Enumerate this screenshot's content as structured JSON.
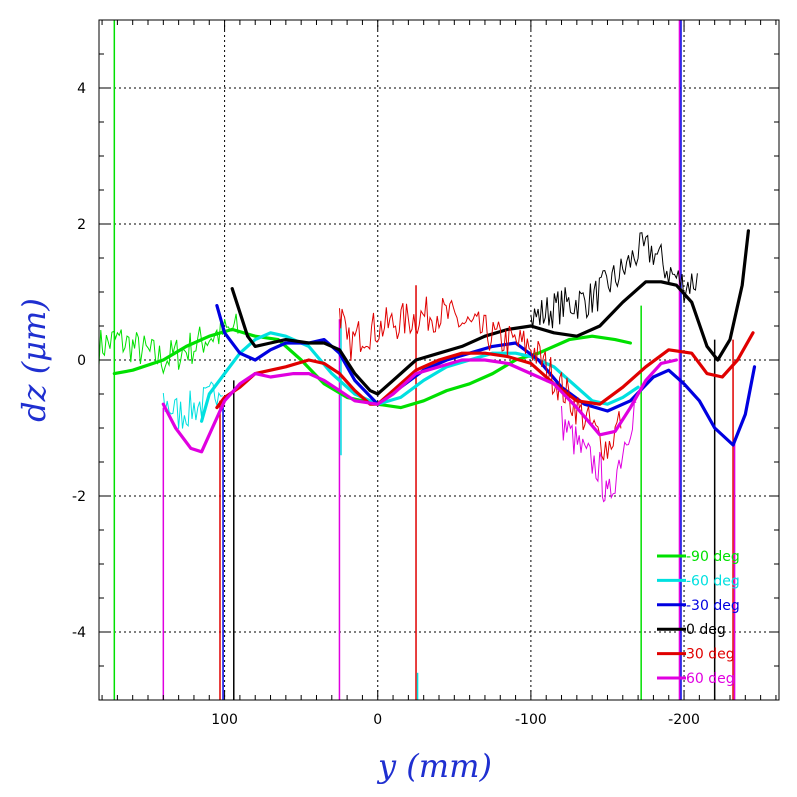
{
  "chart_data": {
    "type": "line",
    "xlabel": "y (mm)",
    "ylabel": "dz (μm)",
    "xlim": [
      182,
      -262
    ],
    "ylim": [
      -5,
      5
    ],
    "x_ticks": [
      100,
      0,
      -100,
      -200
    ],
    "y_ticks": [
      4,
      2,
      0,
      -2,
      -4
    ],
    "grid": true,
    "legend_position": "bottom-right",
    "series": [
      {
        "name": "-90 deg",
        "color": "#00e000",
        "smooth": [
          [
            172,
            -0.2
          ],
          [
            160,
            -0.15
          ],
          [
            140,
            0.0
          ],
          [
            125,
            0.2
          ],
          [
            110,
            0.35
          ],
          [
            95,
            0.45
          ],
          [
            80,
            0.35
          ],
          [
            65,
            0.3
          ],
          [
            50,
            0.0
          ],
          [
            35,
            -0.35
          ],
          [
            20,
            -0.55
          ],
          [
            10,
            -0.6
          ],
          [
            0,
            -0.65
          ],
          [
            -15,
            -0.7
          ],
          [
            -30,
            -0.6
          ],
          [
            -45,
            -0.45
          ],
          [
            -60,
            -0.35
          ],
          [
            -75,
            -0.2
          ],
          [
            -90,
            0.0
          ],
          [
            -105,
            0.1
          ],
          [
            -125,
            0.3
          ],
          [
            -140,
            0.35
          ],
          [
            -155,
            0.3
          ],
          [
            -165,
            0.25
          ]
        ],
        "noisy": [
          [
            182,
            0.2
          ],
          [
            170,
            0.3
          ],
          [
            160,
            0.2
          ],
          [
            150,
            0.1
          ],
          [
            140,
            0.0
          ],
          [
            130,
            0.1
          ],
          [
            120,
            0.2
          ],
          [
            110,
            0.35
          ],
          [
            100,
            0.4
          ],
          [
            90,
            0.45
          ]
        ]
      },
      {
        "name": "-60 deg",
        "color": "#00e0e0",
        "smooth": [
          [
            115,
            -0.9
          ],
          [
            110,
            -0.5
          ],
          [
            100,
            -0.2
          ],
          [
            90,
            0.1
          ],
          [
            80,
            0.3
          ],
          [
            70,
            0.4
          ],
          [
            60,
            0.35
          ],
          [
            45,
            0.2
          ],
          [
            30,
            -0.2
          ],
          [
            15,
            -0.5
          ],
          [
            0,
            -0.65
          ],
          [
            -15,
            -0.55
          ],
          [
            -30,
            -0.3
          ],
          [
            -45,
            -0.1
          ],
          [
            -60,
            0.0
          ],
          [
            -75,
            0.1
          ],
          [
            -90,
            0.1
          ],
          [
            -100,
            0.05
          ],
          [
            -115,
            -0.1
          ],
          [
            -125,
            -0.3
          ],
          [
            -140,
            -0.6
          ],
          [
            -150,
            -0.65
          ],
          [
            -160,
            -0.55
          ],
          [
            -170,
            -0.4
          ]
        ],
        "noisy": [
          [
            140,
            -0.6
          ],
          [
            130,
            -0.8
          ],
          [
            120,
            -0.7
          ],
          [
            110,
            -0.6
          ],
          [
            100,
            -0.2
          ]
        ]
      },
      {
        "name": "-30 deg",
        "color": "#0000e0",
        "smooth": [
          [
            105,
            0.8
          ],
          [
            100,
            0.4
          ],
          [
            90,
            0.1
          ],
          [
            80,
            0.0
          ],
          [
            70,
            0.15
          ],
          [
            60,
            0.25
          ],
          [
            45,
            0.25
          ],
          [
            35,
            0.3
          ],
          [
            25,
            0.1
          ],
          [
            15,
            -0.3
          ],
          [
            0,
            -0.65
          ],
          [
            -15,
            -0.4
          ],
          [
            -30,
            -0.15
          ],
          [
            -45,
            0.0
          ],
          [
            -60,
            0.1
          ],
          [
            -75,
            0.2
          ],
          [
            -90,
            0.25
          ],
          [
            -105,
            0.0
          ],
          [
            -120,
            -0.4
          ],
          [
            -135,
            -0.65
          ],
          [
            -150,
            -0.75
          ],
          [
            -165,
            -0.6
          ],
          [
            -180,
            -0.25
          ],
          [
            -190,
            -0.15
          ],
          [
            -200,
            -0.35
          ],
          [
            -210,
            -0.6
          ],
          [
            -220,
            -1.0
          ],
          [
            -232,
            -1.25
          ],
          [
            -240,
            -0.8
          ],
          [
            -246,
            -0.1
          ]
        ],
        "noisy": []
      },
      {
        "name": "0 deg",
        "color": "#000000",
        "smooth": [
          [
            95,
            1.05
          ],
          [
            90,
            0.7
          ],
          [
            85,
            0.35
          ],
          [
            80,
            0.2
          ],
          [
            70,
            0.25
          ],
          [
            60,
            0.3
          ],
          [
            45,
            0.25
          ],
          [
            35,
            0.25
          ],
          [
            25,
            0.15
          ],
          [
            15,
            -0.2
          ],
          [
            5,
            -0.45
          ],
          [
            0,
            -0.5
          ],
          [
            -10,
            -0.3
          ],
          [
            -25,
            0.0
          ],
          [
            -40,
            0.1
          ],
          [
            -55,
            0.2
          ],
          [
            -70,
            0.35
          ],
          [
            -85,
            0.45
          ],
          [
            -100,
            0.5
          ],
          [
            -115,
            0.4
          ],
          [
            -130,
            0.35
          ],
          [
            -145,
            0.5
          ],
          [
            -160,
            0.85
          ],
          [
            -175,
            1.15
          ],
          [
            -185,
            1.15
          ],
          [
            -195,
            1.1
          ],
          [
            -205,
            0.85
          ],
          [
            -215,
            0.2
          ],
          [
            -222,
            0.0
          ],
          [
            -230,
            0.3
          ],
          [
            -238,
            1.1
          ],
          [
            -242,
            1.9
          ]
        ],
        "noisy": [
          [
            -100,
            0.6
          ],
          [
            -120,
            0.8
          ],
          [
            -140,
            0.9
          ],
          [
            -160,
            1.3
          ],
          [
            -170,
            1.6
          ],
          [
            -180,
            1.6
          ],
          [
            -190,
            1.3
          ],
          [
            -200,
            1.1
          ],
          [
            -210,
            1.2
          ]
        ]
      },
      {
        "name": "30 deg",
        "color": "#e00000",
        "smooth": [
          [
            105,
            -0.7
          ],
          [
            100,
            -0.55
          ],
          [
            90,
            -0.4
          ],
          [
            80,
            -0.2
          ],
          [
            70,
            -0.15
          ],
          [
            60,
            -0.1
          ],
          [
            45,
            0.0
          ],
          [
            35,
            -0.05
          ],
          [
            25,
            -0.2
          ],
          [
            15,
            -0.45
          ],
          [
            5,
            -0.65
          ],
          [
            0,
            -0.65
          ],
          [
            -10,
            -0.45
          ],
          [
            -25,
            -0.15
          ],
          [
            -40,
            0.0
          ],
          [
            -55,
            0.1
          ],
          [
            -70,
            0.1
          ],
          [
            -85,
            0.05
          ],
          [
            -100,
            -0.05
          ],
          [
            -115,
            -0.35
          ],
          [
            -130,
            -0.6
          ],
          [
            -145,
            -0.65
          ],
          [
            -160,
            -0.4
          ],
          [
            -175,
            -0.1
          ],
          [
            -190,
            0.15
          ],
          [
            -205,
            0.1
          ],
          [
            -215,
            -0.2
          ],
          [
            -225,
            -0.25
          ],
          [
            -235,
            0.0
          ],
          [
            -245,
            0.4
          ]
        ],
        "noisy": [
          [
            25,
            0.8
          ],
          [
            20,
            0.2
          ],
          [
            10,
            0.4
          ],
          [
            -20,
            0.6
          ],
          [
            -40,
            0.7
          ],
          [
            -60,
            0.5
          ],
          [
            -80,
            0.3
          ],
          [
            -100,
            0.2
          ],
          [
            -120,
            -0.4
          ],
          [
            -140,
            -1.0
          ],
          [
            -150,
            -1.3
          ],
          [
            -160,
            -0.8
          ]
        ]
      },
      {
        "name": "60 deg",
        "color": "#e000e0",
        "smooth": [
          [
            140,
            -0.65
          ],
          [
            132,
            -1.0
          ],
          [
            122,
            -1.3
          ],
          [
            115,
            -1.35
          ],
          [
            108,
            -1.0
          ],
          [
            100,
            -0.6
          ],
          [
            90,
            -0.35
          ],
          [
            80,
            -0.2
          ],
          [
            70,
            -0.25
          ],
          [
            55,
            -0.2
          ],
          [
            45,
            -0.2
          ],
          [
            35,
            -0.3
          ],
          [
            25,
            -0.45
          ],
          [
            15,
            -0.6
          ],
          [
            0,
            -0.65
          ],
          [
            -10,
            -0.5
          ],
          [
            -25,
            -0.2
          ],
          [
            -40,
            -0.1
          ],
          [
            -55,
            0.0
          ],
          [
            -70,
            0.0
          ],
          [
            -85,
            -0.05
          ],
          [
            -100,
            -0.2
          ],
          [
            -115,
            -0.35
          ],
          [
            -130,
            -0.7
          ],
          [
            -145,
            -1.1
          ],
          [
            -155,
            -1.05
          ],
          [
            -165,
            -0.7
          ],
          [
            -175,
            -0.3
          ],
          [
            -185,
            -0.05
          ],
          [
            -195,
            0.0
          ]
        ],
        "noisy": [
          [
            -120,
            -0.9
          ],
          [
            -135,
            -1.4
          ],
          [
            -145,
            -1.6
          ],
          [
            -150,
            -2.1
          ],
          [
            -160,
            -1.3
          ],
          [
            -170,
            -0.5
          ]
        ]
      }
    ],
    "vertical_spikes": [
      {
        "x": 172,
        "y_from": -5,
        "y_to": 5,
        "color": "#00e000"
      },
      {
        "x": 140,
        "y_from": -0.7,
        "y_to": -5,
        "color": "#e000e0"
      },
      {
        "x": 103,
        "y_from": -0.6,
        "y_to": -5,
        "color": "#e00000"
      },
      {
        "x": 101,
        "y_from": -0.6,
        "y_to": -5,
        "color": "#0000e0"
      },
      {
        "x": 94,
        "y_from": -0.3,
        "y_to": -5,
        "color": "#000000"
      },
      {
        "x": 25,
        "y_from": 0.6,
        "y_to": -5,
        "color": "#e000e0"
      },
      {
        "x": 24,
        "y_from": 0.6,
        "y_to": -1.4,
        "color": "#00e0e0"
      },
      {
        "x": -25,
        "y_from": 1.1,
        "y_to": -5,
        "color": "#e00000"
      },
      {
        "x": -26,
        "y_from": -4.6,
        "y_to": -5,
        "color": "#00e0e0"
      },
      {
        "x": -172,
        "y_from": -5,
        "y_to": 0.8,
        "color": "#00e000"
      },
      {
        "x": -197,
        "y_from": 5,
        "y_to": -5,
        "color": "#e000e0"
      },
      {
        "x": -198,
        "y_from": 5,
        "y_to": -5,
        "color": "#0000e0"
      },
      {
        "x": -220,
        "y_from": 0.3,
        "y_to": -5,
        "color": "#000000"
      },
      {
        "x": -232,
        "y_from": 0.3,
        "y_to": -5,
        "color": "#e00000"
      },
      {
        "x": -233,
        "y_from": -1.2,
        "y_to": -5,
        "color": "#e000e0"
      }
    ]
  }
}
